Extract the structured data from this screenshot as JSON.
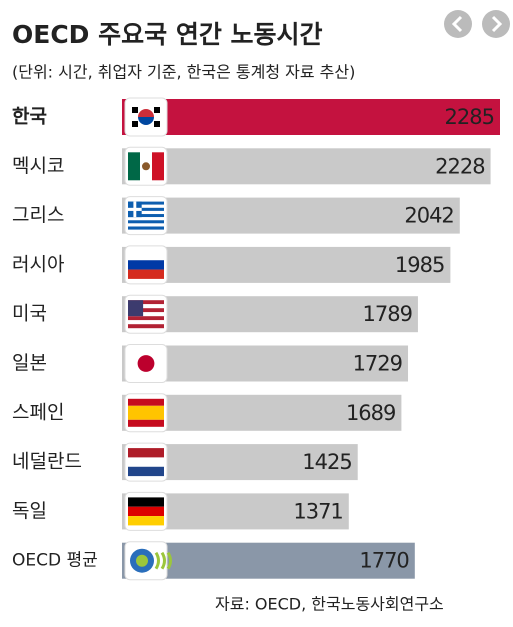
{
  "chart_data": {
    "type": "bar",
    "orientation": "horizontal",
    "title": "OECD 주요국 연간 노동시간",
    "subtitle": "(단위: 시간, 취업자 기준, 한국은 통계청 자료 추산)",
    "source": "자료: OECD, 한국노동사회연구소",
    "categories": [
      "한국",
      "멕시코",
      "그리스",
      "러시아",
      "미국",
      "일본",
      "스페인",
      "네덜란드",
      "독일",
      "OECD 평균"
    ],
    "values": [
      2285,
      2228,
      2042,
      1985,
      1789,
      1729,
      1689,
      1425,
      1371,
      1770
    ],
    "colors": [
      "#c4123f",
      "#c9c9c9",
      "#c9c9c9",
      "#c9c9c9",
      "#c9c9c9",
      "#c9c9c9",
      "#c9c9c9",
      "#c9c9c9",
      "#c9c9c9",
      "#8a97a8"
    ],
    "label_colors": [
      "#ffffff",
      "#222222",
      "#222222",
      "#222222",
      "#222222",
      "#222222",
      "#222222",
      "#222222",
      "#222222",
      "#ffffff"
    ]
  }
}
